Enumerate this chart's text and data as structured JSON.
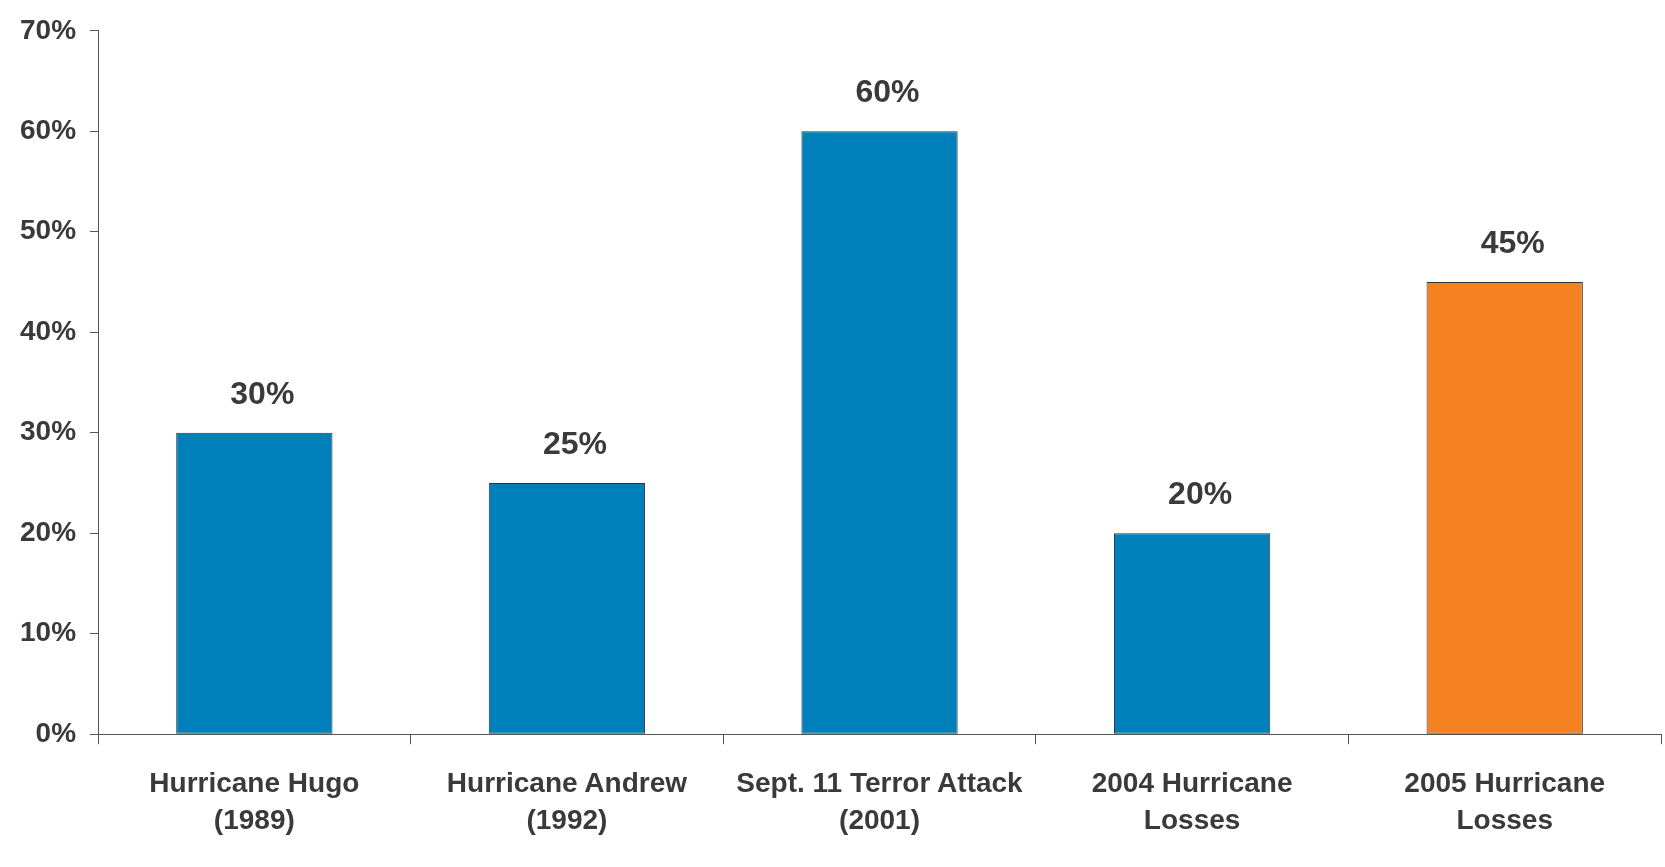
{
  "chart_data": {
    "type": "bar",
    "categories": [
      "Hurricane Hugo (1989)",
      "Hurricane Andrew (1992)",
      "Sept. 11 Terror Attack (2001)",
      "2004 Hurricane Losses",
      "2005 Hurricane Losses"
    ],
    "values": [
      30,
      25,
      60,
      20,
      45
    ],
    "colors": [
      "#0080bb",
      "#0080bb",
      "#0080bb",
      "#0080bb",
      "#f58220"
    ],
    "value_labels": [
      "30%",
      "25%",
      "60%",
      "20%",
      "45%"
    ],
    "ylim": [
      0,
      70
    ],
    "yticks": [
      {
        "value": 0,
        "label": "0%"
      },
      {
        "value": 10,
        "label": "10%"
      },
      {
        "value": 20,
        "label": "20%"
      },
      {
        "value": 30,
        "label": "30%"
      },
      {
        "value": 40,
        "label": "40%"
      },
      {
        "value": 50,
        "label": "50%"
      },
      {
        "value": 60,
        "label": "60%"
      },
      {
        "value": 70,
        "label": "70%"
      }
    ],
    "grid": false,
    "legend": false
  }
}
